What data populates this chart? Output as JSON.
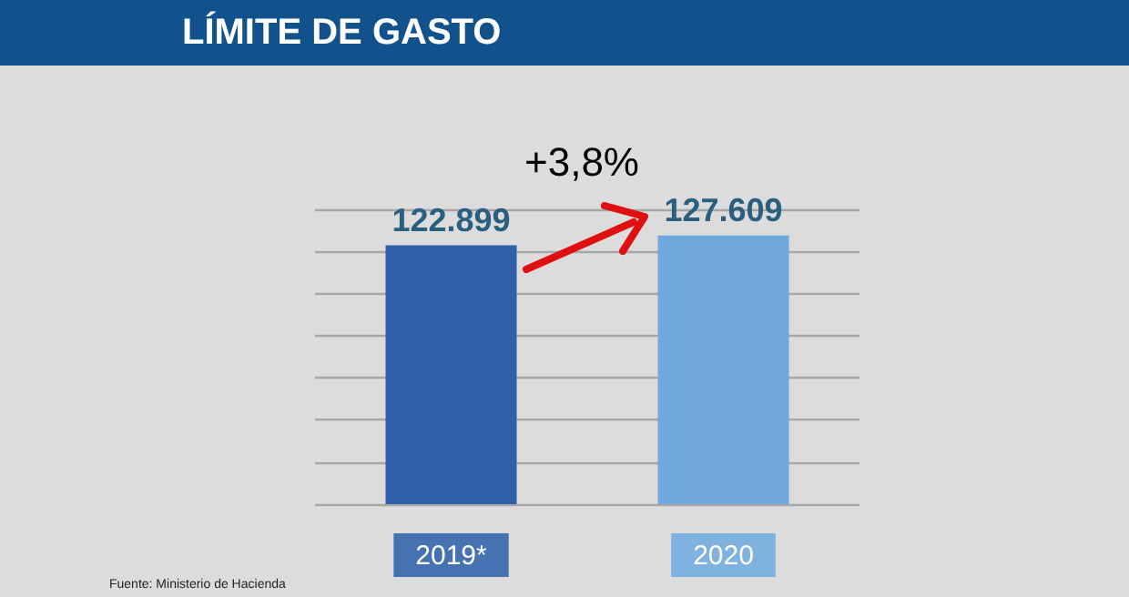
{
  "chart_data": {
    "type": "bar",
    "title": "LÍMITE DE GASTO",
    "categories": [
      "2019*",
      "2020"
    ],
    "values": [
      122.899,
      127.609
    ],
    "data_labels": true,
    "colors": [
      "#2f5fa8",
      "#6fa8dc"
    ],
    "tick_labels": "x",
    "grid": "y",
    "annotations": [
      "+3,8%",
      "Fuente: Ministerio de Hacienda"
    ]
  }
}
